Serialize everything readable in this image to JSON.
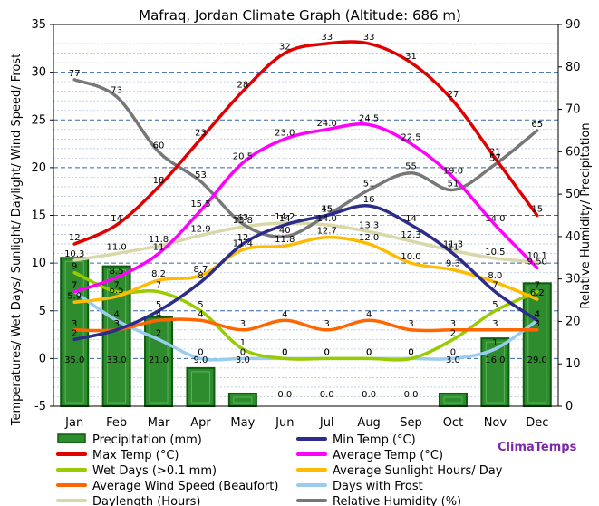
{
  "chart_data": {
    "type": "line",
    "title": "Mafraq, Jordan Climate Graph (Altitude: 686 m)",
    "ylabel_left": "Temperatures/ Wet Days/ Sunlight/ Daylight/ Wind Speed/ Frost",
    "ylabel_right": "Relative Humidity/ Precipitation",
    "brand": "ClimaTemps",
    "categories": [
      "Jan",
      "Feb",
      "Mar",
      "Apr",
      "May",
      "Jun",
      "Jul",
      "Aug",
      "Sep",
      "Oct",
      "Nov",
      "Dec"
    ],
    "y_left": {
      "min": -5,
      "max": 35,
      "ticks": [
        "-5",
        "0",
        "5",
        "10",
        "15",
        "20",
        "25",
        "30",
        "35"
      ]
    },
    "y_right": {
      "min": 0,
      "max": 90,
      "ticks": [
        "0",
        "10",
        "20",
        "30",
        "40",
        "50",
        "60",
        "70",
        "80",
        "90"
      ]
    },
    "grid": true,
    "legend_position": "bottom",
    "series": [
      {
        "name": "Precipitation (mm)",
        "kind": "bar",
        "axis": "right",
        "color": "#2e8b2e",
        "values": [
          35.0,
          33.0,
          21.0,
          9.0,
          3.0,
          0.0,
          0.0,
          0.0,
          0.0,
          3.0,
          16.0,
          29.0
        ],
        "labels": [
          "35.0",
          "33.0",
          "21.0",
          "9.0",
          "3.0",
          "0.0",
          "0.0",
          "0.0",
          "0.0",
          "3.0",
          "16.0",
          "29.0"
        ]
      },
      {
        "name": "Max Temp (°C)",
        "kind": "line",
        "axis": "left",
        "color": "#e00000",
        "values": [
          12,
          14,
          18,
          23,
          28,
          32,
          33,
          33,
          31,
          27,
          21,
          15
        ],
        "labels": [
          "12",
          "14",
          "18",
          "23",
          "28",
          "32",
          "33",
          "33",
          "31",
          "27",
          "21",
          "15"
        ]
      },
      {
        "name": "Wet Days (>0.1 mm)",
        "kind": "line",
        "axis": "left",
        "color": "#99cc00",
        "values": [
          9,
          7,
          7,
          5,
          1,
          0,
          0,
          0,
          0,
          2,
          5,
          7
        ],
        "labels": [
          "9",
          "7",
          "7",
          "5",
          "1",
          "0",
          "0",
          "0",
          "0",
          "2",
          "5",
          "7"
        ]
      },
      {
        "name": "Average Wind Speed (Beaufort)",
        "kind": "line",
        "axis": "left",
        "color": "#ff6600",
        "values": [
          3,
          3,
          4,
          4,
          3,
          4,
          3,
          4,
          3,
          3,
          3,
          3
        ],
        "labels": [
          "3",
          "3",
          "4",
          "4",
          "3",
          "4",
          "3",
          "4",
          "3",
          "3",
          "3",
          "3"
        ]
      },
      {
        "name": "Daylength (Hours)",
        "kind": "line",
        "axis": "left",
        "color": "#d8d8a8",
        "values": [
          10.3,
          11.0,
          11.8,
          12.9,
          13.8,
          14.2,
          14.0,
          13.3,
          12.3,
          11.3,
          10.5,
          10.1
        ],
        "labels": [
          "10.3",
          "11.0",
          "11.8",
          "12.9",
          "13.8",
          "14.2",
          "14.0",
          "13.3",
          "12.3",
          "11.3",
          "10.5",
          "10.1"
        ]
      },
      {
        "name": "Min Temp (°C)",
        "kind": "line",
        "axis": "left",
        "color": "#2c2c8c",
        "values": [
          2,
          3,
          5,
          8,
          12,
          14,
          15,
          16,
          14,
          11,
          7,
          4
        ],
        "labels": [
          "2",
          "3",
          "5",
          "8",
          "12",
          "14",
          "15",
          "16",
          "14",
          "11",
          "7",
          "4"
        ]
      },
      {
        "name": "Average Temp (°C)",
        "kind": "line",
        "axis": "left",
        "color": "#ff00ff",
        "values": [
          7.0,
          8.5,
          11.0,
          15.5,
          20.5,
          23.0,
          24.0,
          24.5,
          22.5,
          19.0,
          14.0,
          9.5
        ],
        "labels": [
          "7",
          "8.5",
          "11",
          "15.5",
          "20.5",
          "23.0",
          "24.0",
          "24.5",
          "22.5",
          "19.0",
          "14.0",
          "9.50"
        ]
      },
      {
        "name": "Average Sunlight Hours/ Day",
        "kind": "line",
        "axis": "left",
        "color": "#ffbb00",
        "values": [
          5.9,
          6.5,
          8.2,
          8.7,
          11.4,
          11.8,
          12.7,
          12.0,
          10.0,
          9.3,
          8.0,
          6.2
        ],
        "labels": [
          "5.9",
          "6.5",
          "8.2",
          "8.7",
          "11.4",
          "11.8",
          "12.7",
          "12.0",
          "10.0",
          "9.3",
          "8.0",
          "6.2"
        ]
      },
      {
        "name": "Days with Frost",
        "kind": "line",
        "axis": "left",
        "color": "#99ccee",
        "values": [
          7,
          4,
          2,
          0,
          0,
          0,
          0,
          0,
          0,
          0,
          1,
          4
        ],
        "labels": [
          "7",
          "4",
          "2",
          "0",
          "0",
          "0",
          "0",
          "0",
          "0",
          "0",
          "1",
          "4"
        ]
      },
      {
        "name": "Relative Humidity (%)",
        "kind": "line",
        "axis": "right",
        "color": "#777777",
        "values": [
          77,
          73,
          60,
          53,
          43,
          40,
          45,
          51,
          55,
          51,
          57,
          65
        ],
        "labels": [
          "77",
          "73",
          "60",
          "53",
          "43",
          "40",
          "45",
          "51",
          "55",
          "51",
          "57",
          "65"
        ]
      }
    ],
    "legend_layout": [
      [
        "Precipitation (mm)",
        "Min Temp (°C)"
      ],
      [
        "Max Temp (°C)",
        "Average Temp (°C)"
      ],
      [
        "Wet Days (>0.1 mm)",
        "Average Sunlight Hours/ Day"
      ],
      [
        "Average Wind Speed (Beaufort)",
        "Days with Frost"
      ],
      [
        "Daylength (Hours)",
        "Relative Humidity (%)"
      ]
    ]
  }
}
